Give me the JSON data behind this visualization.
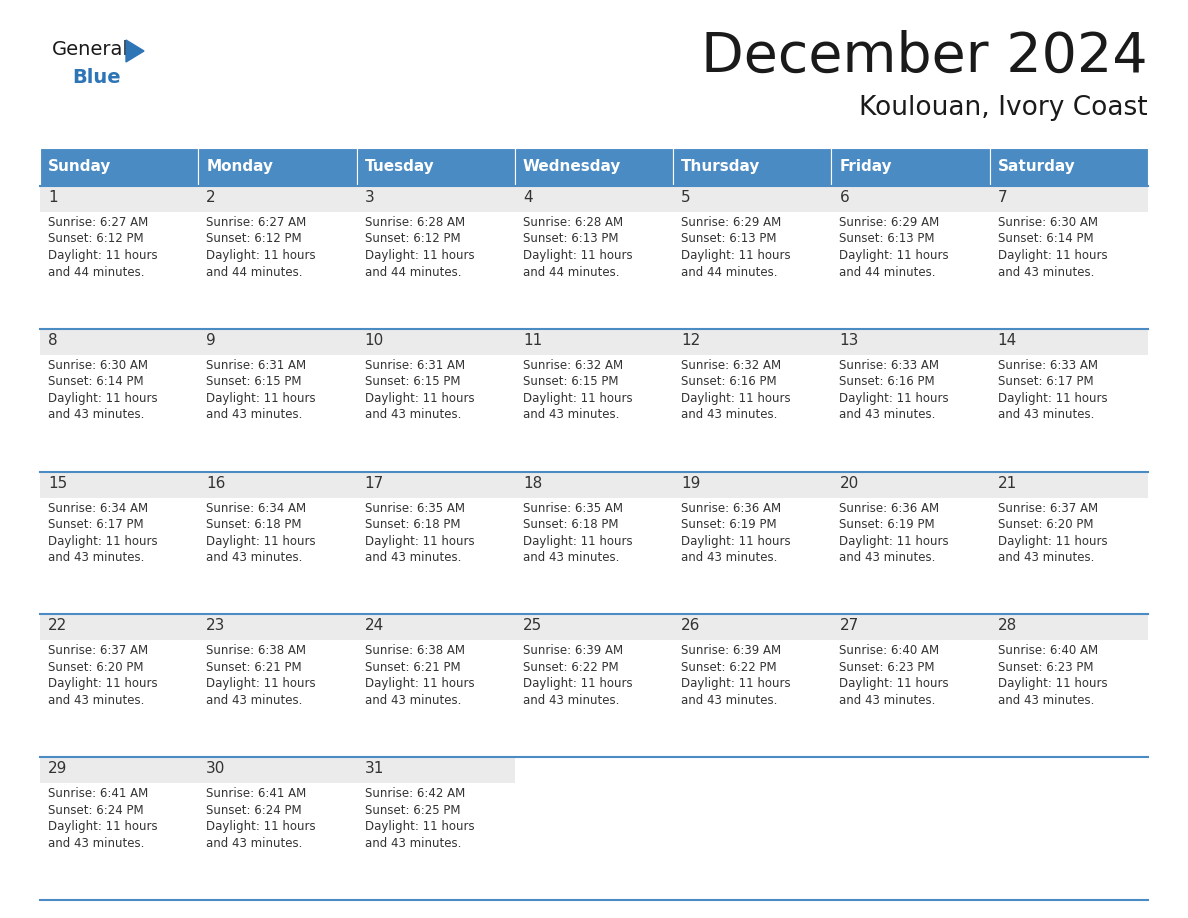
{
  "title": "December 2024",
  "subtitle": "Koulouan, Ivory Coast",
  "header_color": "#4A8BC4",
  "header_text_color": "#FFFFFF",
  "days_of_week": [
    "Sunday",
    "Monday",
    "Tuesday",
    "Wednesday",
    "Thursday",
    "Friday",
    "Saturday"
  ],
  "grid_line_color": "#4A8BC4",
  "background_color": "#FFFFFF",
  "cell_bg_color": "#FFFFFF",
  "day_num_bg": "#EBEBEB",
  "text_color": "#333333",
  "calendar_data": [
    [
      {
        "day": 1,
        "sunrise": "6:27 AM",
        "sunset": "6:12 PM",
        "daylight_line1": "Daylight: 11 hours",
        "daylight_line2": "and 44 minutes."
      },
      {
        "day": 2,
        "sunrise": "6:27 AM",
        "sunset": "6:12 PM",
        "daylight_line1": "Daylight: 11 hours",
        "daylight_line2": "and 44 minutes."
      },
      {
        "day": 3,
        "sunrise": "6:28 AM",
        "sunset": "6:12 PM",
        "daylight_line1": "Daylight: 11 hours",
        "daylight_line2": "and 44 minutes."
      },
      {
        "day": 4,
        "sunrise": "6:28 AM",
        "sunset": "6:13 PM",
        "daylight_line1": "Daylight: 11 hours",
        "daylight_line2": "and 44 minutes."
      },
      {
        "day": 5,
        "sunrise": "6:29 AM",
        "sunset": "6:13 PM",
        "daylight_line1": "Daylight: 11 hours",
        "daylight_line2": "and 44 minutes."
      },
      {
        "day": 6,
        "sunrise": "6:29 AM",
        "sunset": "6:13 PM",
        "daylight_line1": "Daylight: 11 hours",
        "daylight_line2": "and 44 minutes."
      },
      {
        "day": 7,
        "sunrise": "6:30 AM",
        "sunset": "6:14 PM",
        "daylight_line1": "Daylight: 11 hours",
        "daylight_line2": "and 43 minutes."
      }
    ],
    [
      {
        "day": 8,
        "sunrise": "6:30 AM",
        "sunset": "6:14 PM",
        "daylight_line1": "Daylight: 11 hours",
        "daylight_line2": "and 43 minutes."
      },
      {
        "day": 9,
        "sunrise": "6:31 AM",
        "sunset": "6:15 PM",
        "daylight_line1": "Daylight: 11 hours",
        "daylight_line2": "and 43 minutes."
      },
      {
        "day": 10,
        "sunrise": "6:31 AM",
        "sunset": "6:15 PM",
        "daylight_line1": "Daylight: 11 hours",
        "daylight_line2": "and 43 minutes."
      },
      {
        "day": 11,
        "sunrise": "6:32 AM",
        "sunset": "6:15 PM",
        "daylight_line1": "Daylight: 11 hours",
        "daylight_line2": "and 43 minutes."
      },
      {
        "day": 12,
        "sunrise": "6:32 AM",
        "sunset": "6:16 PM",
        "daylight_line1": "Daylight: 11 hours",
        "daylight_line2": "and 43 minutes."
      },
      {
        "day": 13,
        "sunrise": "6:33 AM",
        "sunset": "6:16 PM",
        "daylight_line1": "Daylight: 11 hours",
        "daylight_line2": "and 43 minutes."
      },
      {
        "day": 14,
        "sunrise": "6:33 AM",
        "sunset": "6:17 PM",
        "daylight_line1": "Daylight: 11 hours",
        "daylight_line2": "and 43 minutes."
      }
    ],
    [
      {
        "day": 15,
        "sunrise": "6:34 AM",
        "sunset": "6:17 PM",
        "daylight_line1": "Daylight: 11 hours",
        "daylight_line2": "and 43 minutes."
      },
      {
        "day": 16,
        "sunrise": "6:34 AM",
        "sunset": "6:18 PM",
        "daylight_line1": "Daylight: 11 hours",
        "daylight_line2": "and 43 minutes."
      },
      {
        "day": 17,
        "sunrise": "6:35 AM",
        "sunset": "6:18 PM",
        "daylight_line1": "Daylight: 11 hours",
        "daylight_line2": "and 43 minutes."
      },
      {
        "day": 18,
        "sunrise": "6:35 AM",
        "sunset": "6:18 PM",
        "daylight_line1": "Daylight: 11 hours",
        "daylight_line2": "and 43 minutes."
      },
      {
        "day": 19,
        "sunrise": "6:36 AM",
        "sunset": "6:19 PM",
        "daylight_line1": "Daylight: 11 hours",
        "daylight_line2": "and 43 minutes."
      },
      {
        "day": 20,
        "sunrise": "6:36 AM",
        "sunset": "6:19 PM",
        "daylight_line1": "Daylight: 11 hours",
        "daylight_line2": "and 43 minutes."
      },
      {
        "day": 21,
        "sunrise": "6:37 AM",
        "sunset": "6:20 PM",
        "daylight_line1": "Daylight: 11 hours",
        "daylight_line2": "and 43 minutes."
      }
    ],
    [
      {
        "day": 22,
        "sunrise": "6:37 AM",
        "sunset": "6:20 PM",
        "daylight_line1": "Daylight: 11 hours",
        "daylight_line2": "and 43 minutes."
      },
      {
        "day": 23,
        "sunrise": "6:38 AM",
        "sunset": "6:21 PM",
        "daylight_line1": "Daylight: 11 hours",
        "daylight_line2": "and 43 minutes."
      },
      {
        "day": 24,
        "sunrise": "6:38 AM",
        "sunset": "6:21 PM",
        "daylight_line1": "Daylight: 11 hours",
        "daylight_line2": "and 43 minutes."
      },
      {
        "day": 25,
        "sunrise": "6:39 AM",
        "sunset": "6:22 PM",
        "daylight_line1": "Daylight: 11 hours",
        "daylight_line2": "and 43 minutes."
      },
      {
        "day": 26,
        "sunrise": "6:39 AM",
        "sunset": "6:22 PM",
        "daylight_line1": "Daylight: 11 hours",
        "daylight_line2": "and 43 minutes."
      },
      {
        "day": 27,
        "sunrise": "6:40 AM",
        "sunset": "6:23 PM",
        "daylight_line1": "Daylight: 11 hours",
        "daylight_line2": "and 43 minutes."
      },
      {
        "day": 28,
        "sunrise": "6:40 AM",
        "sunset": "6:23 PM",
        "daylight_line1": "Daylight: 11 hours",
        "daylight_line2": "and 43 minutes."
      }
    ],
    [
      {
        "day": 29,
        "sunrise": "6:41 AM",
        "sunset": "6:24 PM",
        "daylight_line1": "Daylight: 11 hours",
        "daylight_line2": "and 43 minutes."
      },
      {
        "day": 30,
        "sunrise": "6:41 AM",
        "sunset": "6:24 PM",
        "daylight_line1": "Daylight: 11 hours",
        "daylight_line2": "and 43 minutes."
      },
      {
        "day": 31,
        "sunrise": "6:42 AM",
        "sunset": "6:25 PM",
        "daylight_line1": "Daylight: 11 hours",
        "daylight_line2": "and 43 minutes."
      },
      null,
      null,
      null,
      null
    ]
  ],
  "logo_text_general": "General",
  "logo_text_blue": "Blue",
  "logo_triangle_color": "#2E75B6",
  "logo_general_color": "#1a1a1a"
}
